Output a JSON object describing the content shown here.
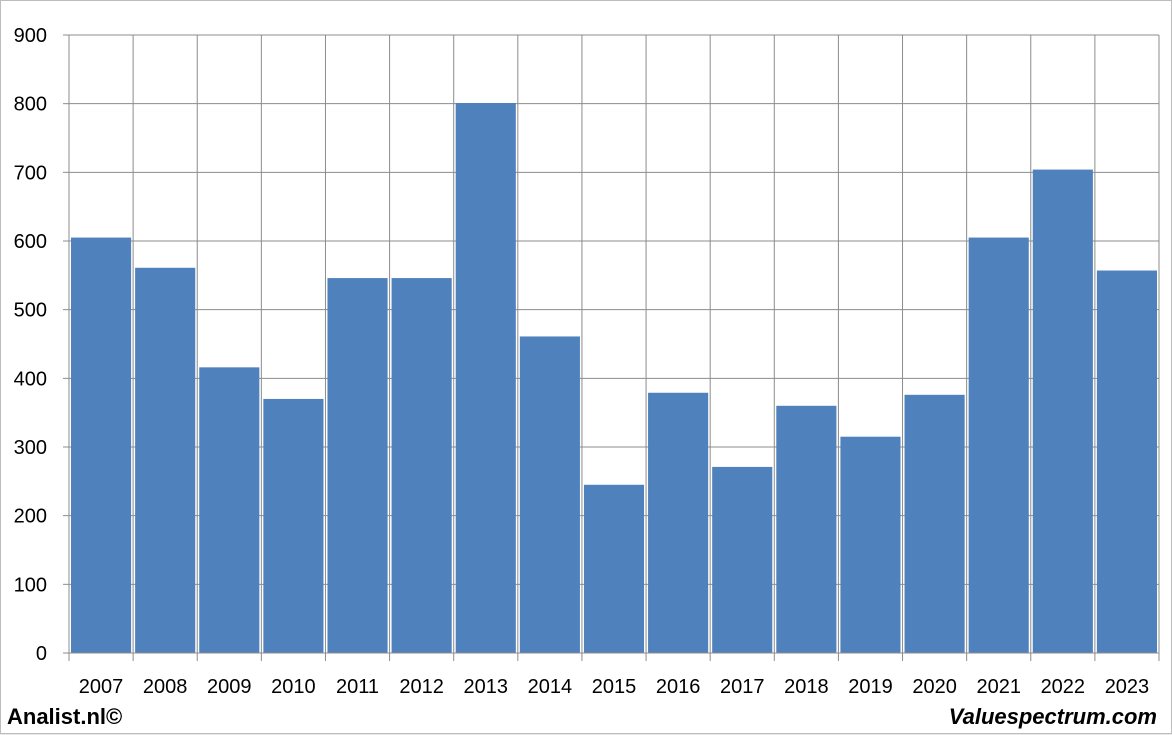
{
  "chart_data": {
    "type": "bar",
    "categories": [
      "2007",
      "2008",
      "2009",
      "2010",
      "2011",
      "2012",
      "2013",
      "2014",
      "2015",
      "2016",
      "2017",
      "2018",
      "2019",
      "2020",
      "2021",
      "2022",
      "2023"
    ],
    "values": [
      605,
      561,
      416,
      370,
      546,
      546,
      801,
      461,
      245,
      379,
      271,
      360,
      315,
      376,
      605,
      704,
      557
    ],
    "ylim": [
      0,
      900
    ],
    "yticks": [
      0,
      100,
      200,
      300,
      400,
      500,
      600,
      700,
      800,
      900
    ],
    "grid": true,
    "bar_color": "#4f81bd",
    "title": "",
    "xlabel": "",
    "ylabel": ""
  },
  "footer": {
    "left": "Analist.nl©",
    "right": "Valuespectrum.com"
  }
}
